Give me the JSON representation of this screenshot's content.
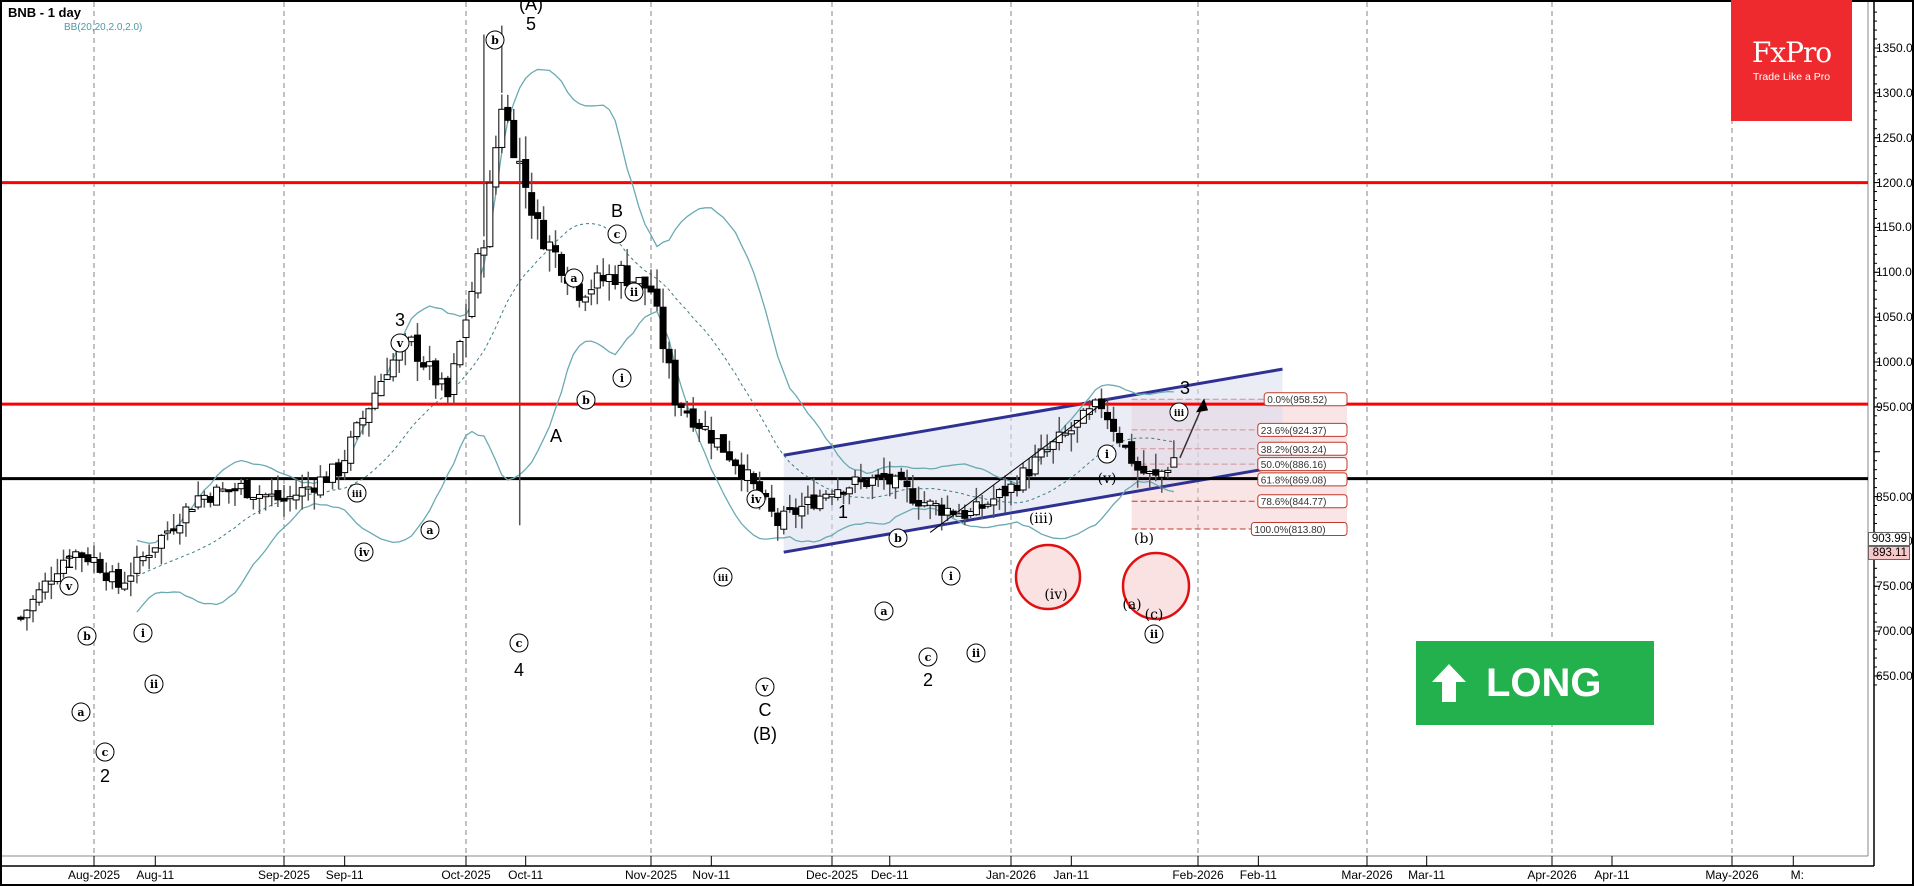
{
  "header": {
    "title": "BNB - 1 day",
    "indicator": "BB(20,20,2.0,2.0)"
  },
  "logo": {
    "brand": "FxPro",
    "tagline": "Trade Like a Pro",
    "color": "#ee2a2f"
  },
  "signal": {
    "label": "LONG",
    "icon": "arrow-up-icon",
    "color": "#22b14c"
  },
  "price_tags": {
    "upper": "903.99",
    "current": "893.11"
  },
  "chart_data": {
    "type": "candlestick",
    "title": "BNB - 1 day",
    "instrument": "BNB",
    "timeframe": "1 day",
    "xlabel": "",
    "ylabel": "",
    "ylim": [
      630,
      1395
    ],
    "y_ticks": [
      "1350.00",
      "1300.00",
      "1250.00",
      "1200.00",
      "1150.00",
      "1100.00",
      "1050.00",
      "1000.00",
      "950.00",
      "900.00",
      "850.00",
      "800.00",
      "750.00",
      "700.00",
      "650.00"
    ],
    "x_ticks": [
      "Aug-2025",
      "Aug-11",
      "Sep-2025",
      "Sep-11",
      "Oct-2025",
      "Oct-11",
      "Nov-2025",
      "Nov-11",
      "Dec-2025",
      "Dec-11",
      "Jan-2026",
      "Jan-11",
      "Feb-2026",
      "Feb-11",
      "Mar-2026",
      "Mar-11",
      "Apr-2026",
      "Apr-11",
      "May-2026",
      "M:"
    ],
    "grid": "vertical dashed at month starts",
    "indicator": "Bollinger Bands (20, 2.0)",
    "horizontal_levels": [
      {
        "price": 1200,
        "color": "#ff0000",
        "label": "resistance"
      },
      {
        "price": 953,
        "color": "#ff0000",
        "label": "resistance"
      },
      {
        "price": 870,
        "color": "#000000",
        "label": "support"
      }
    ],
    "channel": {
      "color": "#2e3192",
      "upper": [
        {
          "date": "2025-11-23",
          "price": 896
        },
        {
          "date": "2026-02-15",
          "price": 992
        }
      ],
      "lower": [
        {
          "date": "2025-11-23",
          "price": 788
        },
        {
          "date": "2026-02-15",
          "price": 884
        }
      ]
    },
    "fibonacci": {
      "levels": [
        {
          "label": "0.0%(958.52)",
          "pct": 0.0,
          "price": 958.52
        },
        {
          "label": "23.6%(924.37)",
          "pct": 23.6,
          "price": 924.37
        },
        {
          "label": "38.2%(903.24)",
          "pct": 38.2,
          "price": 903.24
        },
        {
          "label": "50.0%(886.16)",
          "pct": 50.0,
          "price": 886.16
        },
        {
          "label": "61.8%(869.08)",
          "pct": 61.8,
          "price": 869.08
        },
        {
          "label": "78.6%(844.77)",
          "pct": 78.6,
          "price": 844.77
        },
        {
          "label": "100.0%(813.80)",
          "pct": 100.0,
          "price": 813.8
        }
      ]
    },
    "price_series_approx": {
      "dates": [
        "2025-07-20",
        "2025-07-28",
        "2025-08-01",
        "2025-08-05",
        "2025-08-10",
        "2025-08-18",
        "2025-08-25",
        "2025-09-01",
        "2025-09-10",
        "2025-09-18",
        "2025-09-22",
        "2025-09-28",
        "2025-10-04",
        "2025-10-07",
        "2025-10-10",
        "2025-10-13",
        "2025-10-20",
        "2025-10-27",
        "2025-11-01",
        "2025-11-05",
        "2025-11-15",
        "2025-11-22",
        "2025-12-01",
        "2025-12-10",
        "2025-12-18",
        "2025-12-25",
        "2026-01-01",
        "2026-01-06",
        "2026-01-13",
        "2026-01-16",
        "2026-01-22",
        "2026-01-25",
        "2026-01-28"
      ],
      "close": [
        715,
        790,
        780,
        750,
        790,
        850,
        860,
        845,
        880,
        995,
        1020,
        960,
        1140,
        1290,
        1220,
        1150,
        1080,
        1100,
        1080,
        960,
        890,
        820,
        860,
        870,
        840,
        830,
        860,
        895,
        935,
        953,
        880,
        870,
        893
      ]
    },
    "projection": {
      "from_price": 893,
      "to_price": 955,
      "direction": "up"
    },
    "wave_labels": [
      "1",
      "(v)",
      "(b)",
      "(a)",
      "(c)",
      "2",
      "(i)",
      "(ii)",
      "(iii)",
      "(iv)",
      "3",
      "(v)",
      "(a)",
      "4",
      "(c)",
      "5",
      "(A)",
      "(b)",
      "A",
      "(a)",
      "(b)",
      "B",
      "(c)",
      "(i)",
      "(ii)",
      "(iii)",
      "(iv)",
      "(v)",
      "C",
      "(B)",
      "1",
      "(a)",
      "(b)",
      "(c)",
      "2",
      "(i)",
      "(ii)",
      "(iii)",
      "(iv)",
      "(v)",
      "(i)",
      "(a)",
      "(b)",
      "(c)",
      "(ii)",
      "3",
      "(iii)"
    ],
    "current_price": 893.11,
    "last_marker": 903.99
  }
}
